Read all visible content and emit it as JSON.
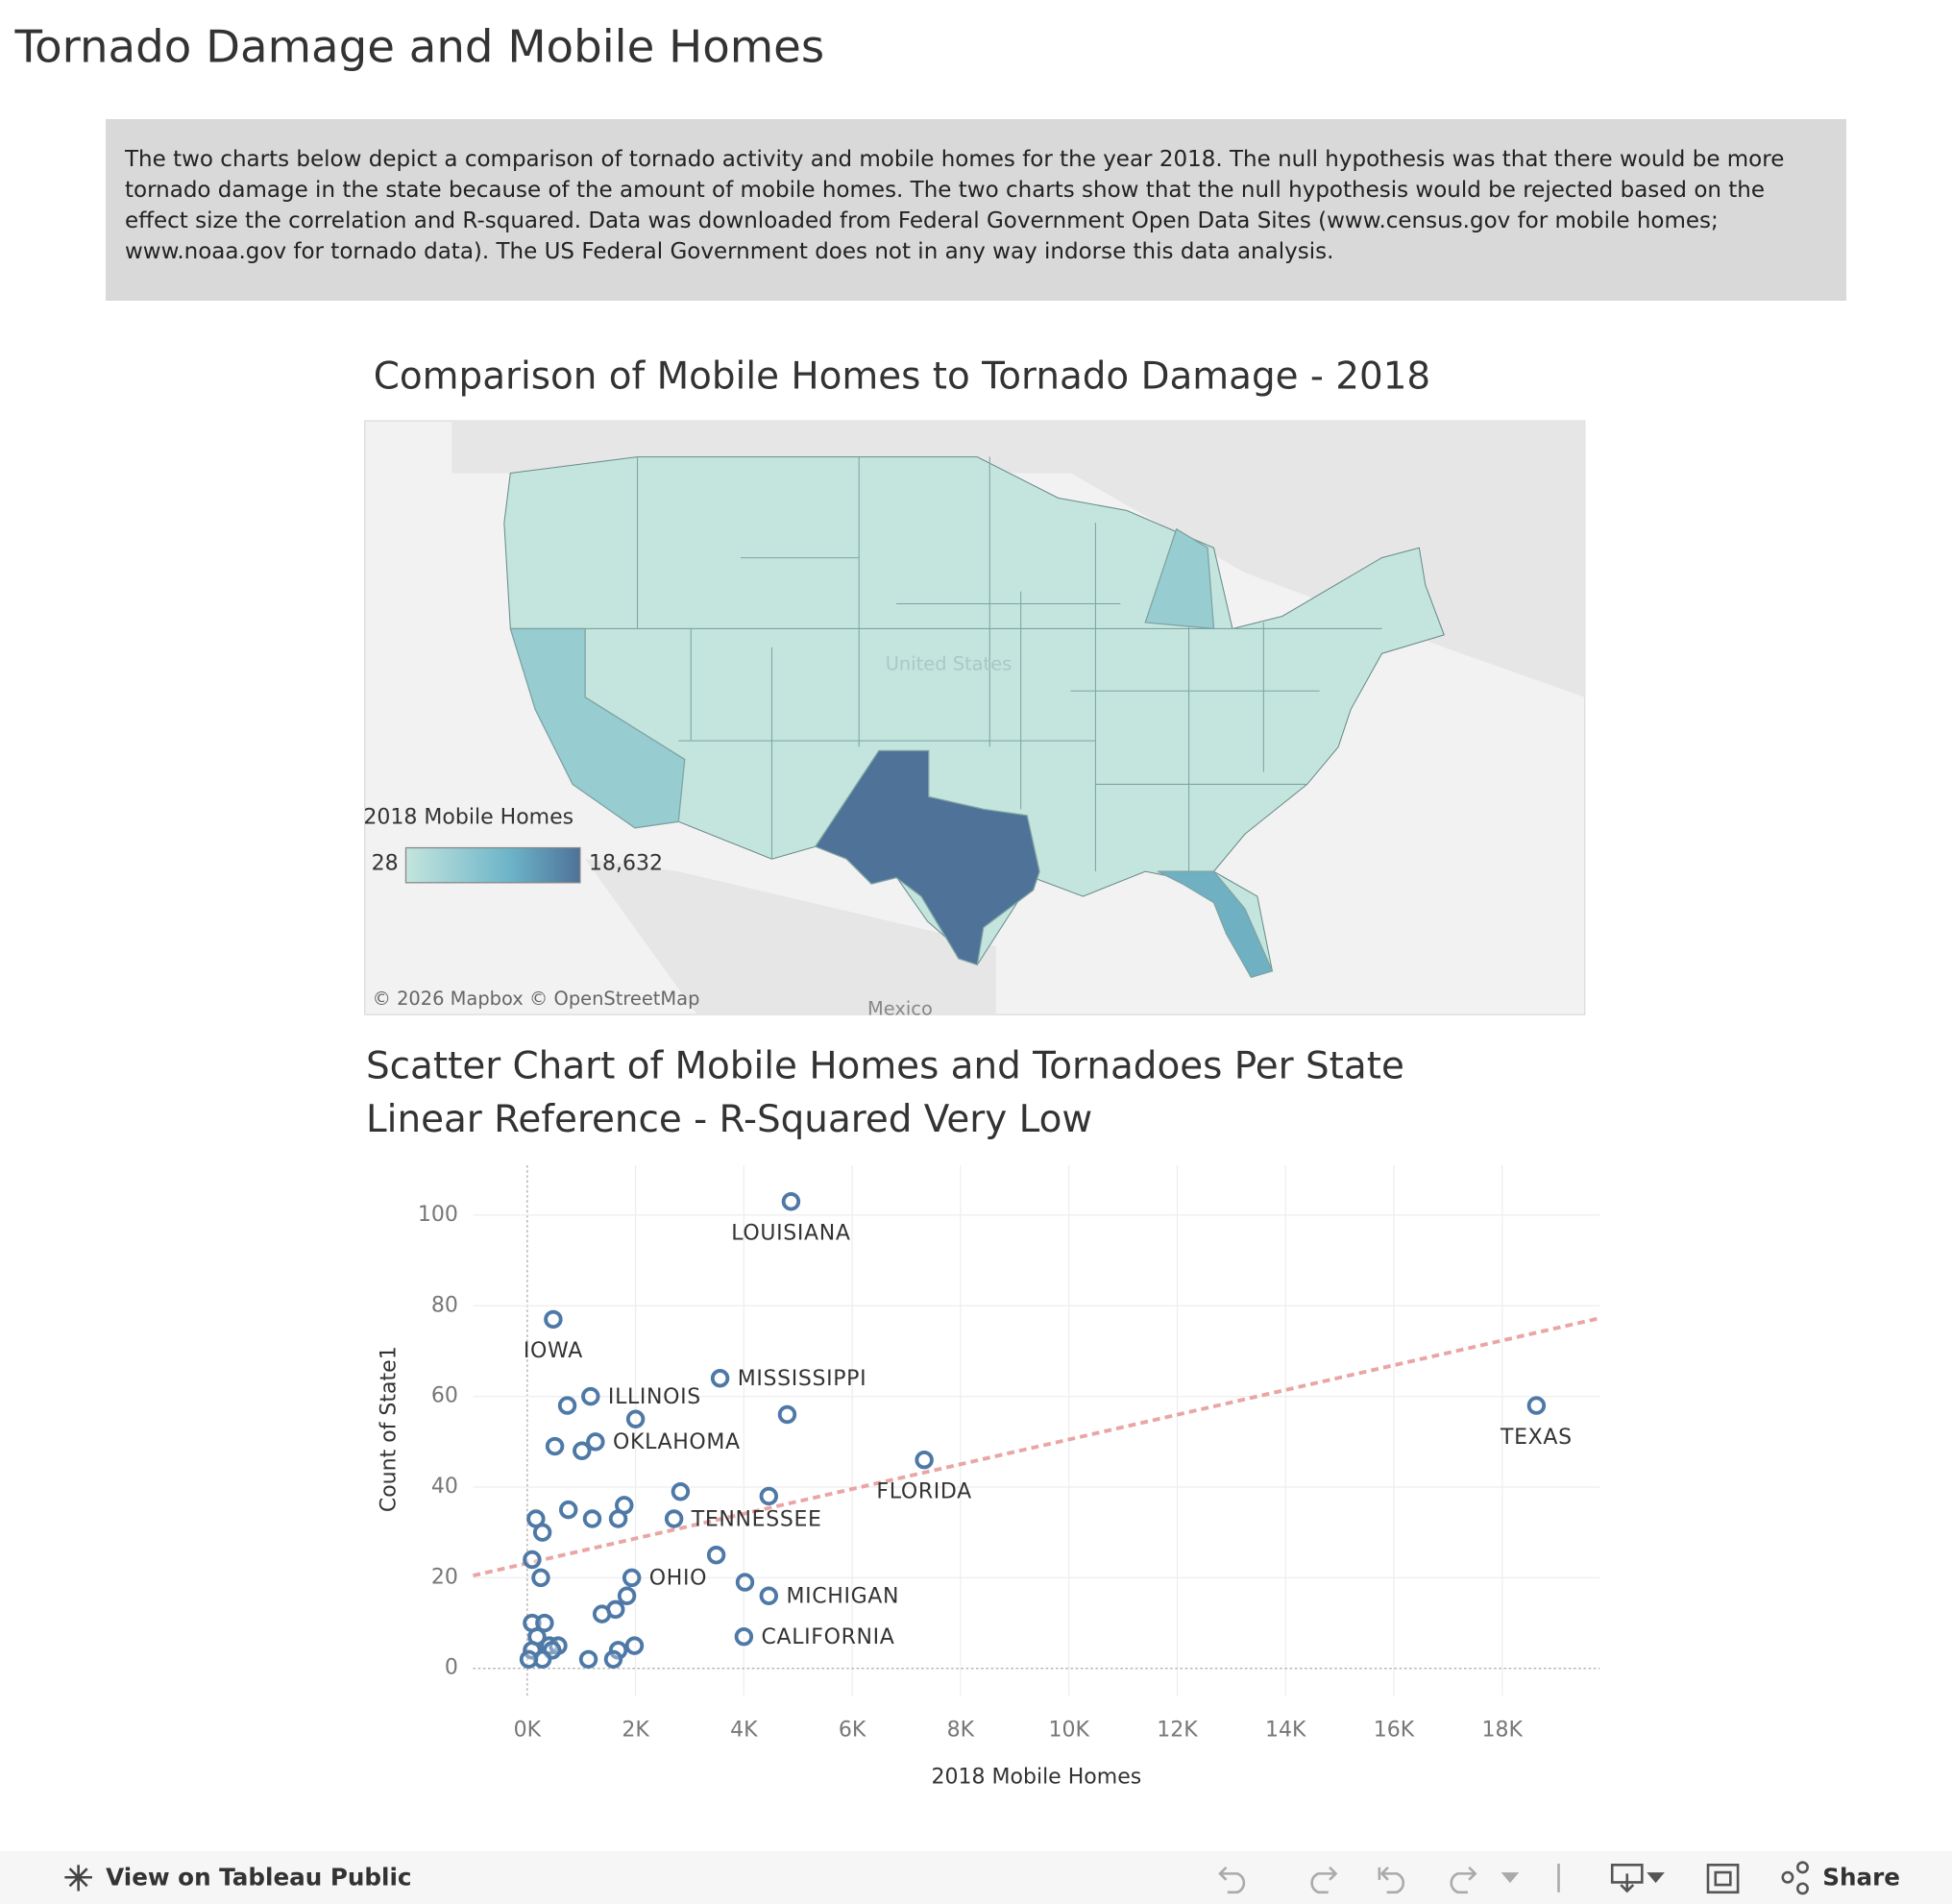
{
  "header": {
    "title": "Tornado Damage and Mobile Homes"
  },
  "description": "The two charts below depict a comparison of tornado activity and mobile homes for the year 2018.  The null hypothesis was that there would be more tornado damage in the state because of the amount of mobile homes.  The two charts show that the null hypothesis would be rejected based on the effect size the correlation and R-squared. Data was downloaded from Federal Government Open Data Sites (www.census.gov for mobile homes; www.noaa.gov for tornado data).  The US Federal Government does not in any way indorse this data analysis.",
  "chart_data": [
    {
      "type": "map",
      "title": "Comparison of Mobile Homes to Tornado Damage - 2018",
      "legend_title": "2018 Mobile Homes",
      "color_scale": [
        {
          "value": 28,
          "label": "28"
        },
        {
          "value": 18632,
          "label": "18,632"
        }
      ],
      "colors": [
        "#c4e5de",
        "#4e7298"
      ],
      "place_labels": [
        "United States",
        "Mexico"
      ],
      "attribution": "© 2026 Mapbox  © OpenStreetMap"
    },
    {
      "type": "scatter",
      "title": "Scatter Chart of Mobile Homes and Tornadoes Per State",
      "subtitle": "Linear Reference - R-Squared Very Low",
      "x_label": "2018 Mobile Homes",
      "y_label": "Count of State1",
      "xlim": [
        -1000,
        19800
      ],
      "ylim": [
        -6,
        111
      ],
      "xticks": [
        {
          "value": 0,
          "label": "0K"
        },
        {
          "value": 2000,
          "label": "2K"
        },
        {
          "value": 4000,
          "label": "4K"
        },
        {
          "value": 6000,
          "label": "6K"
        },
        {
          "value": 8000,
          "label": "8K"
        },
        {
          "value": 10000,
          "label": "10K"
        },
        {
          "value": 12000,
          "label": "12K"
        },
        {
          "value": 14000,
          "label": "14K"
        },
        {
          "value": 16000,
          "label": "16K"
        },
        {
          "value": 18000,
          "label": "18K"
        }
      ],
      "yticks": [
        0,
        20,
        40,
        60,
        80,
        100
      ],
      "grid": true,
      "color": "#4e79a7",
      "trend": {
        "slope": 0.00273,
        "intercept": 23.2,
        "color": "#eaa5a5"
      },
      "x": [
        4870,
        480,
        3560,
        1170,
        740,
        2000,
        4800,
        510,
        1260,
        1010,
        18632,
        7330,
        2830,
        4460,
        760,
        1790,
        1200,
        1680,
        160,
        2710,
        280,
        3490,
        90,
        250,
        1930,
        4020,
        4460,
        1840,
        1630,
        1380,
        90,
        320,
        180,
        410,
        570,
        90,
        460,
        1980,
        4000,
        1680,
        280,
        30,
        1130,
        1590
      ],
      "values": [
        103,
        77,
        64,
        60,
        58,
        55,
        56,
        49,
        50,
        48,
        58,
        46,
        39,
        38,
        35,
        36,
        33,
        33,
        33,
        33,
        30,
        25,
        24,
        20,
        20,
        19,
        16,
        16,
        13,
        12,
        10,
        10,
        7,
        5,
        5,
        4,
        4,
        5,
        7,
        4,
        2,
        2,
        2,
        2
      ],
      "labels": [
        "LOUISIANA",
        "IOWA",
        "MISSISSIPPI",
        "ILLINOIS",
        null,
        null,
        null,
        null,
        "OKLAHOMA",
        null,
        "TEXAS",
        "FLORIDA",
        null,
        null,
        null,
        null,
        null,
        null,
        null,
        "TENNESSEE",
        null,
        null,
        null,
        null,
        "OHIO",
        null,
        "MICHIGAN",
        null,
        null,
        null,
        null,
        null,
        null,
        null,
        null,
        null,
        null,
        null,
        "CALIFORNIA",
        null,
        null,
        null,
        null,
        null
      ]
    }
  ],
  "toolbar": {
    "view_link": "View on Tableau Public",
    "share": "Share"
  }
}
